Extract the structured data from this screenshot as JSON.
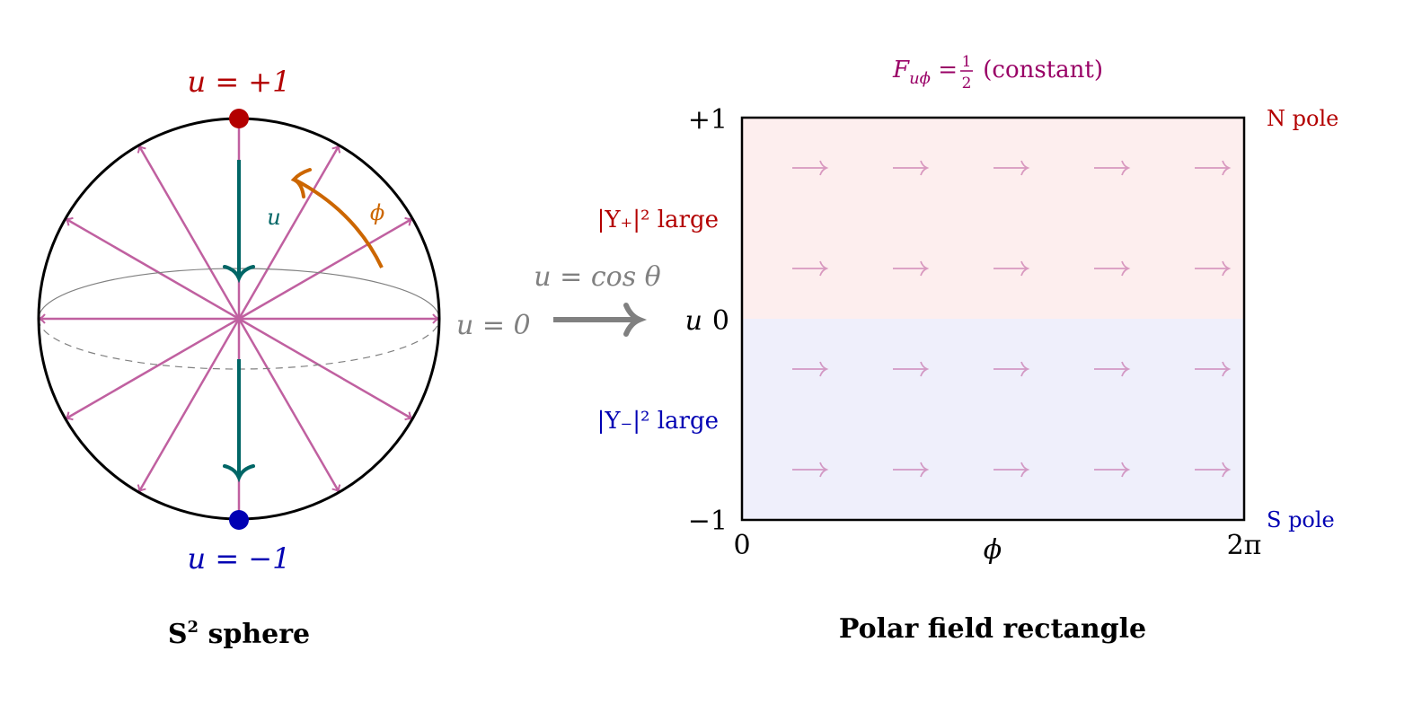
{
  "colors": {
    "north": "#b30000",
    "south": "#0000b3",
    "field_arrow": "#c060a0",
    "u_arrow": "#006666",
    "phi_arrow": "#cc6600",
    "title_magenta": "#990066",
    "gray": "#808080",
    "north_fill": "#fdeeee",
    "south_fill": "#efeffb"
  },
  "sphere": {
    "north_label": "u = +1",
    "south_label": "u = −1",
    "u_label": "u",
    "phi_label": "ϕ",
    "equator_label": "u = 0",
    "caption_main": "S",
    "caption_sup": "2",
    "caption_rest": " sphere",
    "radial_arrow_angles_deg": [
      0,
      30,
      60,
      90,
      120,
      150,
      180,
      210,
      240,
      270,
      300,
      330
    ]
  },
  "mapping": {
    "label": "u = cos θ"
  },
  "rectangle": {
    "title_F": "F",
    "title_sub": "uϕ",
    "title_eq": " = ",
    "title_num": "1",
    "title_den": "2",
    "title_rest": " (constant)",
    "y_axis_label": "u",
    "y_ticks": [
      "+1",
      "0",
      "−1"
    ],
    "x_ticks": [
      "0",
      "2π"
    ],
    "x_label": "ϕ",
    "north_region_label": "|Y₊|² large",
    "south_region_label": "|Y₋|² large",
    "north_pole_label": "N pole",
    "south_pole_label": "S pole",
    "caption": "Polar field rectangle",
    "field_arrow_rows_u": [
      0.75,
      0.25,
      -0.25,
      -0.75
    ],
    "field_arrow_columns": 5
  }
}
